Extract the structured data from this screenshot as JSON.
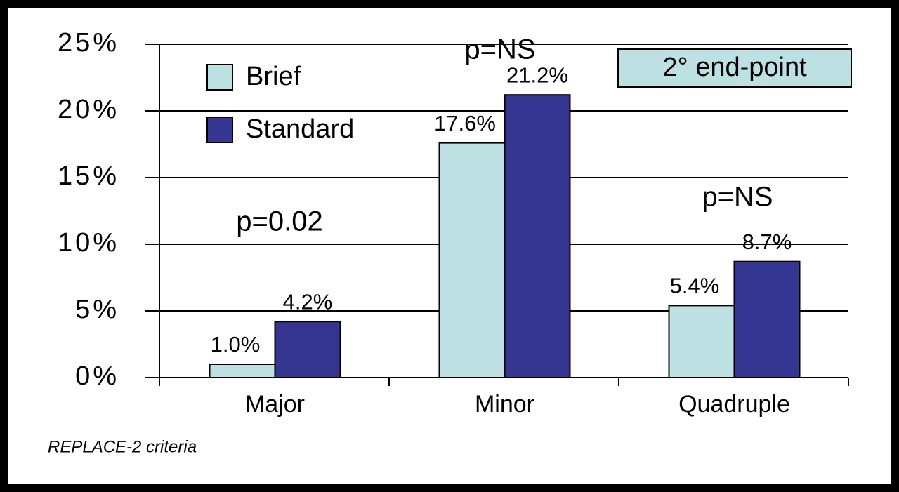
{
  "chart_data": {
    "type": "bar",
    "categories": [
      "Major",
      "Minor",
      "Quadruple"
    ],
    "series": [
      {
        "name": "Brief",
        "color": "#bde0e3",
        "values": [
          1.0,
          17.6,
          5.4
        ],
        "value_labels": [
          "1.0%",
          "17.6%",
          "5.4%"
        ]
      },
      {
        "name": "Standard",
        "color": "#353592",
        "values": [
          4.2,
          21.2,
          8.7
        ],
        "value_labels": [
          "4.2%",
          "21.2%",
          "8.7%"
        ]
      }
    ],
    "ylim": [
      0,
      25
    ],
    "yticks": [
      {
        "value": 0,
        "label": "0%"
      },
      {
        "value": 5,
        "label": "5%"
      },
      {
        "value": 10,
        "label": "10%"
      },
      {
        "value": 15,
        "label": "15%"
      },
      {
        "value": 20,
        "label": "20%"
      },
      {
        "value": 25,
        "label": "25%"
      }
    ],
    "grid": true,
    "legend": "upper left",
    "annotations": [
      "p=0.02",
      "p=NS",
      "p=NS"
    ],
    "box_label": "2° end-point",
    "note": "REPLACE-2 criteria"
  }
}
